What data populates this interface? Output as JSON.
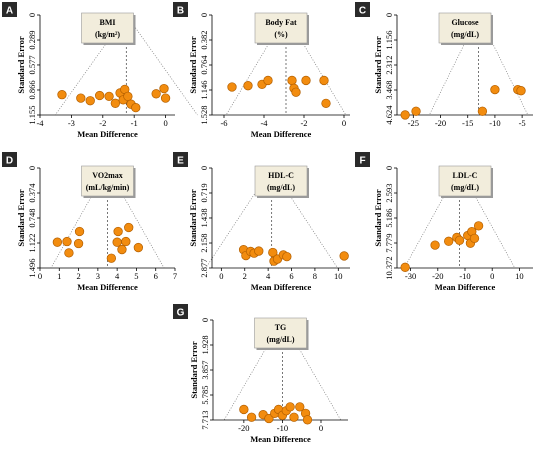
{
  "colors": {
    "point": "#f28c0f",
    "point_stroke": "#b35f00",
    "label_bg": "#2a2a2a",
    "title_box": "#f2eddc"
  },
  "chart_data": [
    {
      "type": "scatter",
      "panel": "A",
      "title_lines": [
        "BMI",
        "(kg/m²)"
      ],
      "xlabel": "Mean Difference",
      "ylabel": "Standard Error",
      "xlim": [
        -4,
        0.3
      ],
      "xticks": [
        -4,
        -3,
        -2,
        -1,
        0
      ],
      "ylim": [
        0,
        1.155
      ],
      "yticks": [
        0,
        0.289,
        0.577,
        0.866,
        1.155
      ],
      "ytick_labels": [
        "0",
        "0.289",
        "0.577",
        "0.866",
        "1.155"
      ],
      "center": -1.25,
      "points": [
        {
          "x": -3.3,
          "y": 0.92
        },
        {
          "x": -2.7,
          "y": 0.96
        },
        {
          "x": -2.4,
          "y": 0.99
        },
        {
          "x": -2.1,
          "y": 0.93
        },
        {
          "x": -1.8,
          "y": 0.94
        },
        {
          "x": -1.6,
          "y": 1.02
        },
        {
          "x": -1.45,
          "y": 0.9
        },
        {
          "x": -1.35,
          "y": 0.98
        },
        {
          "x": -1.3,
          "y": 0.86
        },
        {
          "x": -1.2,
          "y": 0.94
        },
        {
          "x": -1.1,
          "y": 1.03
        },
        {
          "x": -0.95,
          "y": 1.07
        },
        {
          "x": -0.3,
          "y": 0.91
        },
        {
          "x": -0.05,
          "y": 0.85
        },
        {
          "x": 0.0,
          "y": 0.96
        }
      ]
    },
    {
      "type": "scatter",
      "panel": "B",
      "title_lines": [
        "Body Fat",
        "(%)"
      ],
      "xlabel": "Mean Difference",
      "ylabel": "Standard Error",
      "xlim": [
        -6.6,
        0.3
      ],
      "xticks": [
        -6,
        -4,
        -2,
        0
      ],
      "ylim": [
        0,
        1.528
      ],
      "yticks": [
        0,
        0.382,
        0.764,
        1.146,
        1.528
      ],
      "ytick_labels": [
        "0",
        "0.382",
        "0.764",
        "1.146",
        "1.528"
      ],
      "center": -2.9,
      "points": [
        {
          "x": -5.6,
          "y": 1.1
        },
        {
          "x": -4.8,
          "y": 1.08
        },
        {
          "x": -4.1,
          "y": 1.06
        },
        {
          "x": -3.8,
          "y": 1.0
        },
        {
          "x": -2.6,
          "y": 1.0
        },
        {
          "x": -2.5,
          "y": 1.12
        },
        {
          "x": -2.4,
          "y": 1.18
        },
        {
          "x": -1.9,
          "y": 1.0
        },
        {
          "x": -1.0,
          "y": 1.0
        },
        {
          "x": -0.9,
          "y": 1.35
        }
      ]
    },
    {
      "type": "scatter",
      "panel": "C",
      "title_lines": [
        "Glucose",
        "(mg/dL)"
      ],
      "xlabel": "",
      "ylabel": "Standard Error",
      "xlim": [
        -28,
        -3
      ],
      "xticks": [
        -25,
        -20,
        -15,
        -10,
        -5
      ],
      "ylim": [
        0,
        4.624
      ],
      "yticks": [
        0,
        1.156,
        2.312,
        3.468,
        4.624
      ],
      "ytick_labels": [
        "0",
        "1.156",
        "2.312",
        "3.468",
        "4.624"
      ],
      "center": -13,
      "points": [
        {
          "x": -26.5,
          "y": 4.62
        },
        {
          "x": -24.5,
          "y": 4.45
        },
        {
          "x": -12.3,
          "y": 4.45
        },
        {
          "x": -10.0,
          "y": 3.45
        },
        {
          "x": -5.8,
          "y": 3.45
        },
        {
          "x": -5.2,
          "y": 3.5
        }
      ]
    },
    {
      "type": "scatter",
      "panel": "D",
      "title_lines": [
        "VO2max",
        "(mL/kg/min)"
      ],
      "xlabel": "Mean Difference",
      "ylabel": "Standard Error",
      "xlim": [
        0,
        7
      ],
      "xticks": [
        0,
        1,
        2,
        3,
        4,
        5,
        6,
        7
      ],
      "ylim": [
        0,
        1.496
      ],
      "yticks": [
        0,
        0.374,
        0.748,
        1.122,
        1.496
      ],
      "ytick_labels": [
        "0",
        "0.374",
        "0.748",
        "1.122",
        "1.496"
      ],
      "center": 3.5,
      "points": [
        {
          "x": 0.9,
          "y": 1.11
        },
        {
          "x": 1.4,
          "y": 1.1
        },
        {
          "x": 1.5,
          "y": 1.27
        },
        {
          "x": 2.0,
          "y": 1.13
        },
        {
          "x": 2.05,
          "y": 0.95
        },
        {
          "x": 3.7,
          "y": 1.35
        },
        {
          "x": 4.0,
          "y": 1.11
        },
        {
          "x": 4.05,
          "y": 0.95
        },
        {
          "x": 4.25,
          "y": 1.22
        },
        {
          "x": 4.45,
          "y": 1.1
        },
        {
          "x": 4.6,
          "y": 0.89
        },
        {
          "x": 5.1,
          "y": 1.19
        }
      ]
    },
    {
      "type": "scatter",
      "panel": "E",
      "title_lines": [
        "HDL-C",
        "(mg/dL)"
      ],
      "xlabel": "Mean Difference",
      "ylabel": "Standard Error",
      "xlim": [
        -0.8,
        11
      ],
      "xticks": [
        0,
        2,
        4,
        6,
        8,
        10
      ],
      "ylim": [
        0,
        2.877
      ],
      "yticks": [
        0,
        0.719,
        1.438,
        2.158,
        2.877
      ],
      "ytick_labels": [
        "0",
        "0.719",
        "1.438",
        "2.158",
        "2.877"
      ],
      "center": 4.3,
      "points": [
        {
          "x": 1.9,
          "y": 2.35
        },
        {
          "x": 2.1,
          "y": 2.52
        },
        {
          "x": 2.5,
          "y": 2.4
        },
        {
          "x": 2.8,
          "y": 2.45
        },
        {
          "x": 3.2,
          "y": 2.39
        },
        {
          "x": 4.4,
          "y": 2.43
        },
        {
          "x": 4.5,
          "y": 2.68
        },
        {
          "x": 4.8,
          "y": 2.62
        },
        {
          "x": 5.3,
          "y": 2.5
        },
        {
          "x": 5.6,
          "y": 2.55
        },
        {
          "x": 10.5,
          "y": 2.53
        }
      ]
    },
    {
      "type": "scatter",
      "panel": "F",
      "title_lines": [
        "LDL-C",
        "(mg/dL)"
      ],
      "xlabel": "Mean Difference",
      "ylabel": "Standard Error",
      "xlim": [
        -35,
        15
      ],
      "xticks": [
        -30,
        -20,
        -10,
        0,
        10
      ],
      "ylim": [
        0,
        10.372
      ],
      "yticks": [
        0,
        2.593,
        5.186,
        7.779,
        10.372
      ],
      "ytick_labels": [
        "0",
        "2.593",
        "5.186",
        "7.779",
        "10.372"
      ],
      "center": -12,
      "points": [
        {
          "x": -32,
          "y": 10.3
        },
        {
          "x": -21,
          "y": 8.0
        },
        {
          "x": -16,
          "y": 7.6
        },
        {
          "x": -13,
          "y": 7.2
        },
        {
          "x": -12,
          "y": 7.5
        },
        {
          "x": -9,
          "y": 7.0
        },
        {
          "x": -8,
          "y": 7.8
        },
        {
          "x": -7.5,
          "y": 6.6
        },
        {
          "x": -6.5,
          "y": 7.3
        },
        {
          "x": -5,
          "y": 6.0
        }
      ]
    },
    {
      "type": "scatter",
      "panel": "G",
      "title_lines": [
        "TG",
        "(mg/dL)"
      ],
      "xlabel": "Mean Difference",
      "ylabel": "Standard Error",
      "xlim": [
        -28,
        7
      ],
      "xticks": [
        -20,
        -10,
        0
      ],
      "ylim": [
        0,
        7.713
      ],
      "yticks": [
        0,
        1.928,
        3.857,
        5.785,
        7.713
      ],
      "ytick_labels": [
        "0",
        "1.928",
        "3.857",
        "5.785",
        "7.713"
      ],
      "center": -10,
      "points": [
        {
          "x": -20,
          "y": 6.9
        },
        {
          "x": -18,
          "y": 7.5
        },
        {
          "x": -15,
          "y": 7.3
        },
        {
          "x": -13.5,
          "y": 7.6
        },
        {
          "x": -12,
          "y": 7.2
        },
        {
          "x": -11,
          "y": 6.9
        },
        {
          "x": -10,
          "y": 7.35
        },
        {
          "x": -9,
          "y": 7.0
        },
        {
          "x": -8,
          "y": 6.7
        },
        {
          "x": -7,
          "y": 7.5
        },
        {
          "x": -5.5,
          "y": 6.7
        },
        {
          "x": -4,
          "y": 7.2
        },
        {
          "x": -3.5,
          "y": 7.7
        }
      ]
    }
  ]
}
